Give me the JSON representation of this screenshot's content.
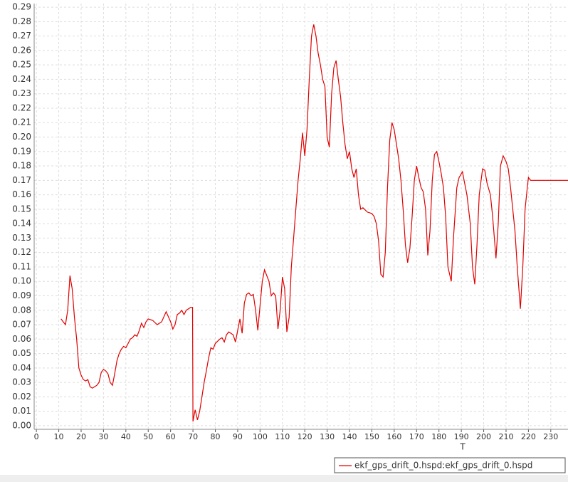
{
  "chart_data": {
    "type": "line",
    "x_label": "T",
    "xlim": [
      -1,
      237.7
    ],
    "ylim": [
      -0.0025,
      0.2925
    ],
    "xticks": [
      0,
      10,
      20,
      30,
      40,
      50,
      60,
      70,
      80,
      90,
      100,
      110,
      120,
      130,
      140,
      150,
      160,
      170,
      180,
      190,
      200,
      210,
      220,
      230
    ],
    "yticks": [
      {
        "value": 0,
        "label": "0.00"
      },
      0.01,
      0.02,
      0.03,
      0.04,
      0.05,
      0.06,
      0.07,
      0.08,
      0.09,
      {
        "value": 0.1,
        "label": "0.10"
      },
      0.11,
      0.12,
      0.13,
      0.14,
      0.15,
      0.16,
      0.17,
      0.18,
      0.19,
      {
        "value": 0.2,
        "label": "0.20"
      },
      0.21,
      0.22,
      0.23,
      0.24,
      0.25,
      0.26,
      0.27,
      0.28,
      0.29
    ],
    "grid": true,
    "legend": "bottom-right",
    "series": [
      {
        "name": "ekf_gps_drift_0.hspd:ekf_gps_drift_0.hspd",
        "color": "#e00000",
        "x": [
          11,
          12,
          13,
          14,
          15,
          16,
          17,
          18,
          19,
          20,
          21,
          22,
          23,
          24,
          25,
          26,
          27,
          28,
          29,
          30,
          31,
          32,
          33,
          34,
          35,
          36,
          37,
          38,
          39,
          40,
          41,
          42,
          43,
          44,
          45,
          46,
          47,
          48,
          49,
          50,
          52,
          54,
          56,
          58,
          60,
          61,
          62,
          63,
          64,
          65,
          66,
          67,
          68,
          69,
          69.8,
          70,
          71,
          72,
          73,
          74,
          75,
          76,
          77,
          78,
          79,
          80,
          82,
          83,
          84,
          85,
          86,
          87,
          88,
          89,
          90,
          91,
          92,
          93,
          94,
          95,
          96,
          97,
          98,
          99,
          100,
          101,
          102,
          103,
          104,
          105,
          106,
          107,
          108,
          109,
          110,
          111,
          112,
          113,
          114,
          115,
          116,
          117,
          118,
          119,
          120,
          121,
          122,
          123,
          124,
          125,
          126,
          127,
          128,
          129,
          130,
          131,
          132,
          133,
          134,
          135,
          136,
          137,
          138,
          139,
          140,
          141,
          142,
          143,
          144,
          145,
          146,
          148,
          150,
          151,
          152,
          153,
          154,
          155,
          156,
          157,
          158,
          159,
          160,
          161,
          162,
          163,
          164,
          165,
          166,
          167,
          168,
          169,
          170,
          171,
          172,
          173,
          174,
          175,
          176,
          177,
          178,
          179,
          180,
          181,
          182,
          183,
          184,
          185.5,
          186.5,
          188,
          189,
          190.5,
          191.5,
          192.5,
          194,
          195,
          196,
          197,
          198,
          199.5,
          200.5,
          201.5,
          203,
          204,
          205.5,
          206.5,
          207.5,
          208.7,
          210,
          211,
          212,
          213,
          214,
          215,
          216.4,
          217.5,
          218.5,
          219.5,
          220,
          221,
          237.7
        ],
        "values": [
          0.074,
          0.072,
          0.07,
          0.08,
          0.104,
          0.095,
          0.075,
          0.06,
          0.04,
          0.035,
          0.032,
          0.031,
          0.032,
          0.027,
          0.026,
          0.027,
          0.028,
          0.03,
          0.037,
          0.039,
          0.038,
          0.036,
          0.03,
          0.028,
          0.036,
          0.045,
          0.05,
          0.053,
          0.055,
          0.054,
          0.057,
          0.06,
          0.061,
          0.063,
          0.062,
          0.066,
          0.071,
          0.068,
          0.072,
          0.074,
          0.073,
          0.07,
          0.072,
          0.079,
          0.072,
          0.067,
          0.07,
          0.077,
          0.078,
          0.08,
          0.077,
          0.08,
          0.081,
          0.082,
          0.082,
          0.003,
          0.011,
          0.004,
          0.01,
          0.02,
          0.03,
          0.038,
          0.047,
          0.054,
          0.053,
          0.057,
          0.06,
          0.061,
          0.058,
          0.063,
          0.065,
          0.064,
          0.063,
          0.058,
          0.066,
          0.074,
          0.064,
          0.085,
          0.091,
          0.092,
          0.09,
          0.091,
          0.08,
          0.066,
          0.083,
          0.1,
          0.108,
          0.104,
          0.1,
          0.09,
          0.092,
          0.09,
          0.067,
          0.08,
          0.103,
          0.095,
          0.065,
          0.075,
          0.11,
          0.13,
          0.15,
          0.17,
          0.185,
          0.203,
          0.187,
          0.205,
          0.24,
          0.27,
          0.278,
          0.27,
          0.258,
          0.25,
          0.24,
          0.235,
          0.2,
          0.193,
          0.23,
          0.248,
          0.253,
          0.24,
          0.228,
          0.21,
          0.195,
          0.185,
          0.19,
          0.178,
          0.172,
          0.178,
          0.16,
          0.15,
          0.151,
          0.148,
          0.147,
          0.145,
          0.14,
          0.128,
          0.105,
          0.103,
          0.12,
          0.165,
          0.198,
          0.21,
          0.205,
          0.195,
          0.185,
          0.17,
          0.15,
          0.125,
          0.113,
          0.123,
          0.145,
          0.17,
          0.18,
          0.172,
          0.165,
          0.162,
          0.15,
          0.118,
          0.135,
          0.17,
          0.188,
          0.19,
          0.183,
          0.175,
          0.165,
          0.145,
          0.11,
          0.1,
          0.13,
          0.165,
          0.172,
          0.176,
          0.168,
          0.16,
          0.14,
          0.11,
          0.098,
          0.125,
          0.16,
          0.178,
          0.177,
          0.168,
          0.16,
          0.145,
          0.116,
          0.14,
          0.18,
          0.187,
          0.183,
          0.178,
          0.165,
          0.15,
          0.135,
          0.11,
          0.081,
          0.11,
          0.15,
          0.165,
          0.172,
          0.17,
          0.17
        ]
      }
    ]
  }
}
